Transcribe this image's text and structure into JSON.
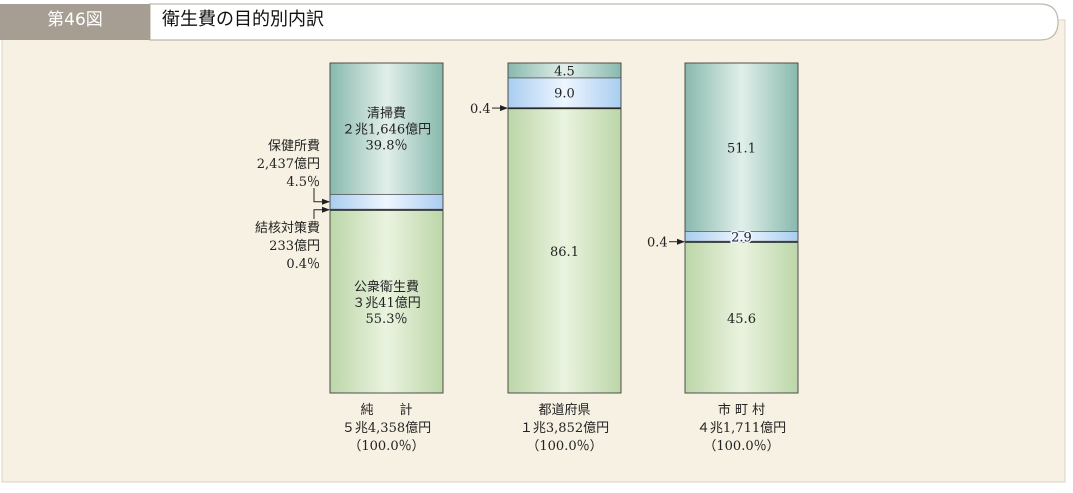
{
  "header": {
    "figure_number": "第46図",
    "title": "衛生費の目的別内訳"
  },
  "colors": {
    "title_tab": "#a79e93",
    "public_health": "#bcd6a8",
    "tuberculosis": "#222222",
    "health_center": "#a9cdf0",
    "cleaning": "#88b9ad"
  },
  "chart_data": {
    "type": "bar",
    "stacked": true,
    "percent": true,
    "ylim": [
      0,
      100
    ],
    "title": "衛生費の目的別内訳",
    "categories": [
      {
        "name_lines": [
          "純　　計"
        ],
        "total_lines": [
          "５兆4,358億円",
          "（100.0％）"
        ]
      },
      {
        "name_lines": [
          "都道府県"
        ],
        "total_lines": [
          "１兆3,852億円",
          "（100.0％）"
        ]
      },
      {
        "name_lines": [
          "市 町 村"
        ],
        "total_lines": [
          "４兆1,711億円",
          "（100.0％）"
        ]
      }
    ],
    "series": [
      {
        "name": "公衆衛生費",
        "values": [
          55.3,
          86.1,
          45.6
        ],
        "value_labels": [
          "",
          "86.1",
          "45.6"
        ]
      },
      {
        "name": "結核対策費",
        "values": [
          0.4,
          0.4,
          0.4
        ],
        "value_labels": [
          "",
          "0.4",
          "0.4"
        ]
      },
      {
        "name": "保健所費",
        "values": [
          4.5,
          9.0,
          2.9
        ],
        "value_labels": [
          "",
          "9.0",
          "2.9"
        ]
      },
      {
        "name": "清掃費",
        "values": [
          39.8,
          4.5,
          51.1
        ],
        "value_labels": [
          "",
          "4.5",
          "51.1"
        ]
      }
    ],
    "inside_labels": [
      {
        "category": 0,
        "series": 0,
        "lines": [
          "公衆衛生費",
          "３兆41億円",
          "55.3％"
        ]
      },
      {
        "category": 0,
        "series": 3,
        "lines": [
          "清掃費",
          "２兆1,646億円",
          "39.8％"
        ]
      }
    ],
    "outside_labels": [
      {
        "category": 0,
        "series": 2,
        "lines": [
          "保健所費",
          "2,437億円",
          "4.5％"
        ]
      },
      {
        "category": 0,
        "series": 1,
        "lines": [
          "結核対策費",
          "233億円",
          "0.4％"
        ]
      }
    ]
  }
}
